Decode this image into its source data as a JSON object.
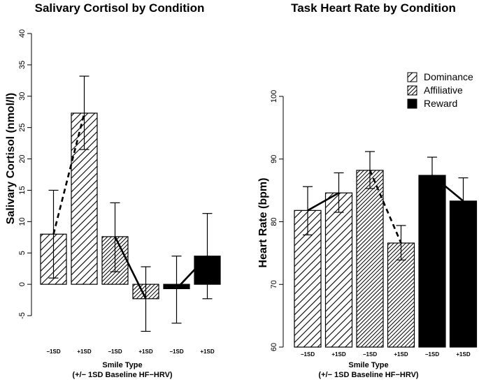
{
  "chart_data": [
    {
      "type": "bar",
      "title": "Salivary Cortisol by Condition",
      "ylabel": "Salivary Cortisol (nmol/l)",
      "xlabel": "Smile Type",
      "xlabel2": "(+/− 1SD Baseline HF−HRV)",
      "categories": [
        "−1SD",
        "+1SD",
        "−1SD",
        "+1SD",
        "−1SD",
        "+1SD"
      ],
      "groups": [
        "Dominance",
        "Dominance",
        "Affiliative",
        "Affiliative",
        "Reward",
        "Reward"
      ],
      "values": [
        8.0,
        27.3,
        7.6,
        -2.3,
        -0.7,
        4.5
      ],
      "err_low": [
        1.0,
        21.5,
        2.0,
        -7.5,
        -6.2,
        -2.3
      ],
      "err_high": [
        15.0,
        33.2,
        13.0,
        2.8,
        4.5,
        11.3
      ],
      "connector_styles": [
        "dashed",
        "solid",
        "solid"
      ],
      "ylim": [
        -7,
        40
      ],
      "yticks": [
        "-5",
        "0",
        "5",
        "10",
        "15",
        "20",
        "25",
        "30",
        "35",
        "40"
      ]
    },
    {
      "type": "bar",
      "title": "Task Heart Rate by Condition",
      "ylabel": "Heart Rate (bpm)",
      "xlabel": "Smile Type",
      "xlabel2": "(+/− 1SD Baseline HF−HRV)",
      "categories": [
        "−1SD",
        "+1SD",
        "−1SD",
        "+1SD",
        "−1SD",
        "+1SD"
      ],
      "groups": [
        "Dominance",
        "Dominance",
        "Affiliative",
        "Affiliative",
        "Reward",
        "Reward"
      ],
      "values": [
        81.8,
        84.6,
        88.2,
        76.6,
        87.4,
        83.3
      ],
      "err_low": [
        77.9,
        81.5,
        85.3,
        73.9,
        84.5,
        79.5
      ],
      "err_high": [
        85.6,
        87.8,
        91.2,
        79.4,
        90.3,
        87.0
      ],
      "connector_styles": [
        "solid",
        "dashed",
        "solid"
      ],
      "ylim": [
        60,
        100
      ],
      "yticks": [
        "60",
        "70",
        "80",
        "90",
        "100"
      ],
      "legend": [
        "Dominance",
        "Affiliative",
        "Reward"
      ],
      "legend_position": "top-right"
    }
  ]
}
